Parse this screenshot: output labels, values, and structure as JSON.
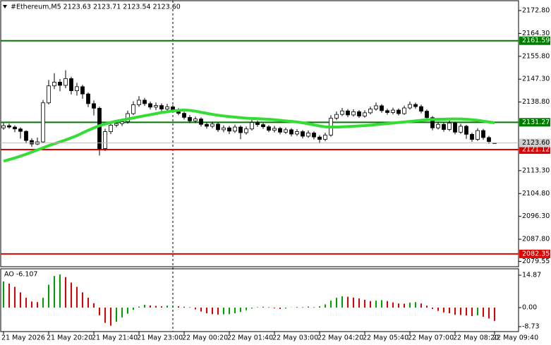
{
  "chart_data": [
    {
      "type": "candlestick",
      "title": "#Ethereum,M5  2123.63 2123.71 2123.54 2123.60",
      "categories": [
        "21 May 2026",
        null,
        null,
        null,
        null,
        null,
        null,
        null,
        "21 May 20:20",
        null,
        null,
        null,
        null,
        null,
        null,
        null,
        "21 May 21:40",
        null,
        null,
        null,
        null,
        null,
        null,
        null,
        "21 May 23:00",
        null,
        null,
        null,
        null,
        null,
        null,
        null,
        "22 May 00:20",
        null,
        null,
        null,
        null,
        null,
        null,
        null,
        "22 May 01:40",
        null,
        null,
        null,
        null,
        null,
        null,
        null,
        "22 May 03:00",
        null,
        null,
        null,
        null,
        null,
        null,
        null,
        "22 May 04:20",
        null,
        null,
        null,
        null,
        null,
        null,
        null,
        "22 May 05:40",
        null,
        null,
        null,
        null,
        null,
        null,
        null,
        "22 May 07:00",
        null,
        null,
        null,
        null,
        null,
        null,
        null,
        "22 May 08:20",
        null,
        null,
        null,
        null,
        null,
        null,
        "22 May 09:40"
      ],
      "open": [
        2129.2,
        2130.0,
        2129.5,
        2128.8,
        2127.9,
        2124.5,
        2123.2,
        2124.0,
        2138.5,
        2144.8,
        2146.2,
        2145.0,
        2147.5,
        2143.0,
        2144.5,
        2141.8,
        2138.2,
        2136.5,
        2121.5,
        2127.8,
        2130.2,
        2130.8,
        2131.5,
        2134.5,
        2137.8,
        2139.5,
        2138.2,
        2136.9,
        2137.5,
        2136.2,
        2137.0,
        2135.8,
        2134.6,
        2133.1,
        2131.8,
        2132.5,
        2130.5,
        2129.8,
        2130.6,
        2128.5,
        2129.2,
        2128.0,
        2129.5,
        2127.4,
        2128.8,
        2131.2,
        2130.4,
        2129.6,
        2128.3,
        2129.0,
        2127.6,
        2128.5,
        2126.9,
        2127.8,
        2126.1,
        2127.3,
        2125.8,
        2124.9,
        2126.5,
        2132.8,
        2134.2,
        2135.5,
        2134.0,
        2135.2,
        2133.6,
        2134.8,
        2136.2,
        2137.4,
        2135.6,
        2134.9,
        2135.8,
        2134.5,
        2136.6,
        2137.9,
        2137.1,
        2135.4,
        2133.0,
        2129.2,
        2130.5,
        2128.6,
        2131.0,
        2127.6,
        2129.8,
        2126.8,
        2124.9,
        2128.2,
        2125.6,
        2123.63
      ],
      "high": [
        2131.0,
        2130.8,
        2130.1,
        2129.4,
        2128.3,
        2125.3,
        2125.6,
        2139.6,
        2147.0,
        2149.5,
        2147.4,
        2150.6,
        2148.2,
        2145.9,
        2145.2,
        2142.4,
        2139.4,
        2137.1,
        2128.9,
        2131.3,
        2132.0,
        2132.6,
        2135.6,
        2139.1,
        2141.0,
        2140.3,
        2139.0,
        2138.6,
        2138.3,
        2138.1,
        2137.7,
        2136.5,
        2135.2,
        2133.9,
        2133.4,
        2133.1,
        2131.2,
        2131.5,
        2131.2,
        2130.1,
        2129.9,
        2130.4,
        2130.1,
        2129.7,
        2132.1,
        2131.9,
        2131.0,
        2130.2,
        2129.9,
        2129.6,
        2129.3,
        2129.1,
        2128.7,
        2128.4,
        2128.2,
        2127.9,
        2126.5,
        2127.4,
        2133.9,
        2135.3,
        2136.6,
        2136.2,
        2136.1,
        2135.8,
        2135.7,
        2137.1,
        2138.6,
        2138.0,
        2136.3,
        2136.7,
        2136.4,
        2137.5,
        2139.0,
        2138.6,
        2137.8,
        2136.0,
        2133.6,
        2131.4,
        2131.1,
        2131.9,
        2131.5,
        2130.7,
        2130.3,
        2127.4,
        2129.1,
        2128.8,
        2126.2,
        2123.71
      ],
      "low": [
        2128.5,
        2128.9,
        2127.6,
        2125.2,
        2123.4,
        2122.1,
        2122.8,
        2123.5,
        2137.9,
        2143.6,
        2142.8,
        2143.9,
        2141.6,
        2141.2,
        2140.0,
        2136.9,
        2133.8,
        2118.9,
        2120.6,
        2126.9,
        2129.4,
        2129.9,
        2130.8,
        2133.9,
        2137.0,
        2137.4,
        2136.0,
        2135.8,
        2135.4,
        2135.5,
        2134.9,
        2133.9,
        2132.3,
        2131.0,
        2131.0,
        2129.7,
        2128.9,
        2129.1,
        2127.7,
        2127.6,
        2126.9,
        2127.3,
        2125.0,
        2126.7,
        2128.2,
        2129.6,
        2128.8,
        2127.6,
        2127.5,
        2126.8,
        2126.9,
        2126.0,
        2126.2,
        2125.3,
        2125.5,
        2124.9,
        2123.4,
        2124.2,
        2125.9,
        2132.1,
        2133.6,
        2133.2,
        2133.4,
        2132.9,
        2133.0,
        2134.2,
        2135.6,
        2134.8,
        2134.1,
        2134.2,
        2133.8,
        2134.0,
        2136.0,
        2136.3,
        2134.6,
        2132.2,
        2128.3,
        2128.6,
        2127.8,
        2128.0,
        2126.8,
        2127.0,
        2125.1,
        2124.0,
        2124.3,
        2124.8,
        2123.3,
        2123.54
      ],
      "close": [
        2130.0,
        2129.5,
        2128.8,
        2127.9,
        2124.5,
        2123.2,
        2124.0,
        2138.5,
        2144.8,
        2146.2,
        2145.0,
        2147.5,
        2143.0,
        2144.5,
        2141.8,
        2138.2,
        2136.5,
        2121.5,
        2127.8,
        2130.2,
        2130.8,
        2131.5,
        2134.5,
        2137.8,
        2139.5,
        2138.2,
        2136.9,
        2137.5,
        2136.2,
        2137.0,
        2135.8,
        2134.6,
        2133.1,
        2131.8,
        2132.5,
        2130.5,
        2129.8,
        2130.6,
        2128.5,
        2129.2,
        2128.0,
        2129.5,
        2127.4,
        2128.8,
        2131.2,
        2130.4,
        2129.6,
        2128.3,
        2129.0,
        2127.6,
        2128.5,
        2126.9,
        2127.8,
        2126.1,
        2127.3,
        2125.8,
        2124.9,
        2126.5,
        2132.8,
        2134.2,
        2135.5,
        2134.0,
        2135.2,
        2133.6,
        2134.8,
        2136.2,
        2137.4,
        2135.6,
        2134.9,
        2135.8,
        2134.5,
        2136.6,
        2137.9,
        2137.1,
        2135.4,
        2133.0,
        2129.2,
        2130.5,
        2128.6,
        2131.0,
        2127.6,
        2129.8,
        2126.8,
        2124.9,
        2128.2,
        2125.6,
        2124.1,
        2123.6
      ],
      "bull_color": "#ffffff",
      "bear_color": "#000000",
      "ma": {
        "color": "#33dd33",
        "values": [
          2116.8,
          2117.4,
          2118.0,
          2118.7,
          2119.4,
          2120.2,
          2121.0,
          2121.8,
          2122.6,
          2123.3,
          2124.0,
          2124.7,
          2125.5,
          2126.3,
          2127.3,
          2128.3,
          2129.2,
          2130.0,
          2130.6,
          2131.2,
          2131.7,
          2132.1,
          2132.5,
          2132.9,
          2133.3,
          2133.7,
          2134.1,
          2134.5,
          2134.9,
          2135.2,
          2135.5,
          2135.7,
          2135.8,
          2135.7,
          2135.4,
          2135.0,
          2134.6,
          2134.2,
          2133.9,
          2133.6,
          2133.4,
          2133.2,
          2133.0,
          2132.8,
          2132.7,
          2132.6,
          2132.5,
          2132.4,
          2132.2,
          2132.0,
          2131.8,
          2131.6,
          2131.4,
          2131.1,
          2130.7,
          2130.3,
          2129.9,
          2129.6,
          2129.5,
          2129.5,
          2129.6,
          2129.7,
          2129.8,
          2129.9,
          2130.0,
          2130.2,
          2130.4,
          2130.6,
          2130.8,
          2131.0,
          2131.2,
          2131.4,
          2131.6,
          2131.8,
          2132.0,
          2132.2,
          2132.3,
          2132.4,
          2132.4,
          2132.5,
          2132.5,
          2132.5,
          2132.4,
          2132.2,
          2132.0,
          2131.7,
          2131.4,
          2131.1
        ]
      },
      "levels": [
        {
          "value": 2161.59,
          "color": "#007a00"
        },
        {
          "value": 2131.27,
          "color": "#007a00"
        },
        {
          "value": 2121.12,
          "color": "#e00000"
        },
        {
          "value": 2082.35,
          "color": "#e00000"
        }
      ],
      "last_price": {
        "value": 2123.6,
        "label": "2123.60"
      },
      "ylim": [
        2077.6,
        2176.46
      ],
      "yticks": [
        {
          "value": 2172.8,
          "label": "2172.80"
        },
        {
          "value": 2164.3,
          "label": "2164.30"
        },
        {
          "value": 2155.8,
          "label": "2155.80"
        },
        {
          "value": 2147.3,
          "label": "2147.30"
        },
        {
          "value": 2138.8,
          "label": "2138.80"
        },
        {
          "value": 2113.3,
          "label": "2113.30"
        },
        {
          "value": 2104.8,
          "label": "2104.80"
        },
        {
          "value": 2096.3,
          "label": "2096.30"
        },
        {
          "value": 2087.8,
          "label": "2087.80"
        },
        2079.55
      ]
    },
    {
      "type": "histogram",
      "title": "AO -6.107",
      "values": [
        12.0,
        11.0,
        9.5,
        7.0,
        4.5,
        2.8,
        2.5,
        4.5,
        10.5,
        14.5,
        15.2,
        14.0,
        11.5,
        9.5,
        7.0,
        4.5,
        2.0,
        -3.5,
        -7.0,
        -8.3,
        -6.5,
        -4.5,
        -2.8,
        -1.0,
        0.5,
        1.3,
        1.0,
        0.8,
        0.6,
        0.9,
        1.0,
        0.6,
        0.4,
        0.2,
        -0.8,
        -1.8,
        -2.6,
        -3.0,
        -3.2,
        -3.1,
        -3.0,
        -2.6,
        -2.0,
        -1.2,
        -0.4,
        0.2,
        0.4,
        0.2,
        -0.3,
        -0.6,
        -0.4,
        0.1,
        0.3,
        0.2,
        0.5,
        0.2,
        0.6,
        1.5,
        3.2,
        4.5,
        5.2,
        5.0,
        4.6,
        4.2,
        3.6,
        3.0,
        3.2,
        3.4,
        3.0,
        2.4,
        1.9,
        1.8,
        2.3,
        2.5,
        1.9,
        0.9,
        -0.6,
        -1.5,
        -2.2,
        -2.6,
        -3.3,
        -3.4,
        -3.6,
        -3.9,
        -3.5,
        -4.2,
        -5.0,
        -6.107
      ],
      "up_color": "#00a000",
      "down_color": "#dd0000",
      "ylim": [
        -11.0,
        17.8
      ],
      "yticks": [
        14.87,
        {
          "value": 0,
          "label": "0.00"
        },
        -8.73
      ]
    }
  ]
}
